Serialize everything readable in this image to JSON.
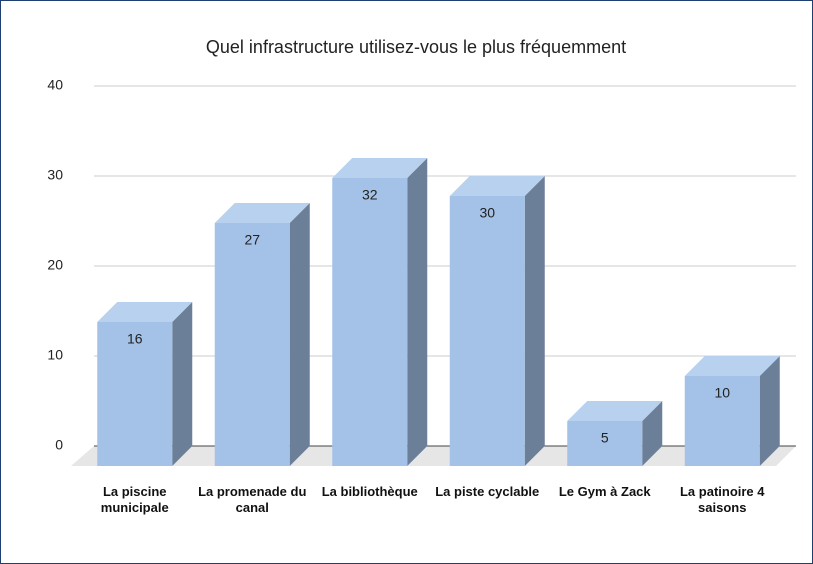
{
  "chart_data": {
    "type": "bar3d",
    "title": "Quel infrastructure utilisez-vous le plus fréquemment",
    "categories": [
      "La piscine municipale",
      "La promenade du canal",
      "La bibliothèque",
      "La piste cyclable",
      "Le Gym à Zack",
      "La patinoire 4 saisons"
    ],
    "values": [
      16,
      27,
      32,
      30,
      5,
      10
    ],
    "color": "#a4c2e8",
    "ylim": [
      0,
      40
    ],
    "yticks": [
      0,
      10,
      20,
      30,
      40
    ],
    "grid": true
  }
}
